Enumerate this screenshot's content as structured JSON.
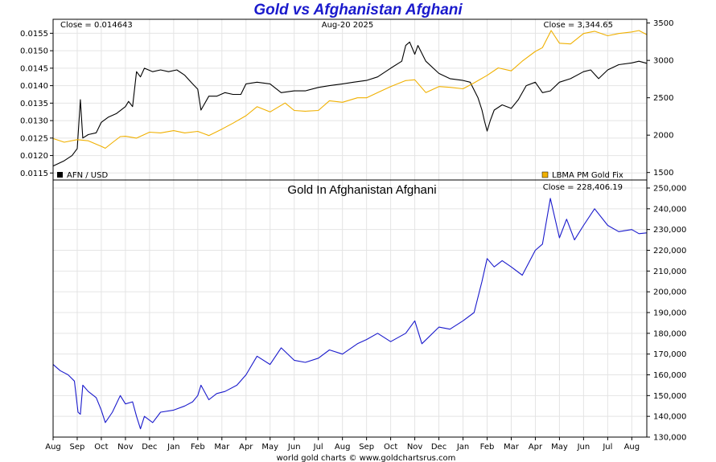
{
  "title": "Gold vs Afghanistan Afghani",
  "footer": "world gold charts © www.goldchartsrus.com",
  "chart_data": [
    {
      "type": "line",
      "title": "",
      "date_label": "Aug-20  2025",
      "left_close": "Close = 0.014643",
      "right_close": "Close = 3,344.65",
      "x_ticks": [
        "Aug",
        "Sep",
        "Oct",
        "Nov",
        "Dec",
        "Jan",
        "Feb",
        "Mar",
        "Apr",
        "May",
        "Jun",
        "Jul",
        "Aug",
        "Sep",
        "Oct",
        "Nov",
        "Dec",
        "Jan",
        "Feb",
        "Mar",
        "Apr",
        "May",
        "Jun",
        "Jul",
        "Aug"
      ],
      "x_start": "2023-08",
      "x_end": "2025-08-20",
      "left_axis": {
        "ylim": [
          0.0113,
          0.0159
        ],
        "ticks": [
          "0.0115",
          "0.0120",
          "0.0125",
          "0.0130",
          "0.0135",
          "0.0140",
          "0.0145",
          "0.0150",
          "0.0155"
        ]
      },
      "right_axis": {
        "ylim": [
          1400,
          3550
        ],
        "ticks": [
          "1500",
          "2000",
          "2500",
          "3000",
          "3500"
        ]
      },
      "legend_position": "bottom",
      "series": [
        {
          "name": "AFN / USD",
          "axis": "left",
          "color": "#000000",
          "points": [
            [
              "2023-08-01",
              0.0117
            ],
            [
              "2023-08-15",
              0.01185
            ],
            [
              "2023-08-25",
              0.012
            ],
            [
              "2023-09-01",
              0.0122
            ],
            [
              "2023-09-05",
              0.0136
            ],
            [
              "2023-09-08",
              0.0125
            ],
            [
              "2023-09-15",
              0.0126
            ],
            [
              "2023-09-25",
              0.01265
            ],
            [
              "2023-10-01",
              0.01295
            ],
            [
              "2023-10-10",
              0.0131
            ],
            [
              "2023-10-20",
              0.0132
            ],
            [
              "2023-11-01",
              0.0134
            ],
            [
              "2023-11-05",
              0.01355
            ],
            [
              "2023-11-10",
              0.0134
            ],
            [
              "2023-11-15",
              0.0144
            ],
            [
              "2023-11-20",
              0.01425
            ],
            [
              "2023-11-25",
              0.0145
            ],
            [
              "2023-12-05",
              0.0144
            ],
            [
              "2023-12-15",
              0.01445
            ],
            [
              "2023-12-25",
              0.0144
            ],
            [
              "2024-01-05",
              0.01445
            ],
            [
              "2024-01-15",
              0.0143
            ],
            [
              "2024-01-25",
              0.01405
            ],
            [
              "2024-02-01",
              0.0139
            ],
            [
              "2024-02-05",
              0.0133
            ],
            [
              "2024-02-15",
              0.0137
            ],
            [
              "2024-02-25",
              0.0137
            ],
            [
              "2024-03-05",
              0.0138
            ],
            [
              "2024-03-15",
              0.01375
            ],
            [
              "2024-03-25",
              0.01375
            ],
            [
              "2024-04-01",
              0.01405
            ],
            [
              "2024-04-15",
              0.0141
            ],
            [
              "2024-05-01",
              0.01405
            ],
            [
              "2024-05-15",
              0.0138
            ],
            [
              "2024-06-01",
              0.01385
            ],
            [
              "2024-06-15",
              0.01385
            ],
            [
              "2024-07-01",
              0.01395
            ],
            [
              "2024-07-15",
              0.014
            ],
            [
              "2024-08-01",
              0.01405
            ],
            [
              "2024-08-15",
              0.0141
            ],
            [
              "2024-09-01",
              0.01415
            ],
            [
              "2024-09-15",
              0.01425
            ],
            [
              "2024-10-01",
              0.0145
            ],
            [
              "2024-10-15",
              0.0147
            ],
            [
              "2024-10-20",
              0.01515
            ],
            [
              "2024-10-25",
              0.01525
            ],
            [
              "2024-11-01",
              0.0149
            ],
            [
              "2024-11-05",
              0.01515
            ],
            [
              "2024-11-15",
              0.0147
            ],
            [
              "2024-12-01",
              0.01435
            ],
            [
              "2024-12-15",
              0.0142
            ],
            [
              "2025-01-01",
              0.01415
            ],
            [
              "2025-01-10",
              0.0141
            ],
            [
              "2025-01-20",
              0.01365
            ],
            [
              "2025-01-25",
              0.0133
            ],
            [
              "2025-01-28",
              0.013
            ],
            [
              "2025-02-01",
              0.0127
            ],
            [
              "2025-02-05",
              0.013
            ],
            [
              "2025-02-10",
              0.0133
            ],
            [
              "2025-02-20",
              0.01345
            ],
            [
              "2025-03-01",
              0.01335
            ],
            [
              "2025-03-10",
              0.0136
            ],
            [
              "2025-03-20",
              0.014
            ],
            [
              "2025-04-01",
              0.0141
            ],
            [
              "2025-04-10",
              0.0138
            ],
            [
              "2025-04-20",
              0.01385
            ],
            [
              "2025-05-01",
              0.0141
            ],
            [
              "2025-05-15",
              0.0142
            ],
            [
              "2025-06-01",
              0.0144
            ],
            [
              "2025-06-10",
              0.01445
            ],
            [
              "2025-06-20",
              0.0142
            ],
            [
              "2025-07-01",
              0.01445
            ],
            [
              "2025-07-15",
              0.0146
            ],
            [
              "2025-08-01",
              0.01465
            ],
            [
              "2025-08-10",
              0.0147
            ],
            [
              "2025-08-20",
              0.01464
            ]
          ]
        },
        {
          "name": "LBMA PM Gold Fix",
          "axis": "right",
          "color": "#f0b000",
          "points": [
            [
              "2023-08-01",
              1955
            ],
            [
              "2023-08-15",
              1905
            ],
            [
              "2023-09-01",
              1940
            ],
            [
              "2023-09-15",
              1925
            ],
            [
              "2023-10-01",
              1850
            ],
            [
              "2023-10-06",
              1825
            ],
            [
              "2023-10-15",
              1900
            ],
            [
              "2023-10-25",
              1980
            ],
            [
              "2023-11-01",
              1985
            ],
            [
              "2023-11-15",
              1960
            ],
            [
              "2023-12-01",
              2040
            ],
            [
              "2023-12-15",
              2030
            ],
            [
              "2024-01-01",
              2060
            ],
            [
              "2024-01-15",
              2030
            ],
            [
              "2024-02-01",
              2050
            ],
            [
              "2024-02-15",
              1995
            ],
            [
              "2024-03-01",
              2080
            ],
            [
              "2024-03-15",
              2160
            ],
            [
              "2024-04-01",
              2260
            ],
            [
              "2024-04-15",
              2380
            ],
            [
              "2024-05-01",
              2310
            ],
            [
              "2024-05-20",
              2430
            ],
            [
              "2024-06-01",
              2330
            ],
            [
              "2024-06-15",
              2320
            ],
            [
              "2024-07-01",
              2330
            ],
            [
              "2024-07-15",
              2460
            ],
            [
              "2024-08-01",
              2440
            ],
            [
              "2024-08-20",
              2500
            ],
            [
              "2024-09-01",
              2500
            ],
            [
              "2024-09-15",
              2570
            ],
            [
              "2024-10-01",
              2650
            ],
            [
              "2024-10-20",
              2730
            ],
            [
              "2024-11-01",
              2740
            ],
            [
              "2024-11-15",
              2570
            ],
            [
              "2024-12-01",
              2650
            ],
            [
              "2024-12-15",
              2640
            ],
            [
              "2025-01-01",
              2620
            ],
            [
              "2025-01-15",
              2700
            ],
            [
              "2025-02-01",
              2800
            ],
            [
              "2025-02-15",
              2900
            ],
            [
              "2025-03-01",
              2860
            ],
            [
              "2025-03-15",
              2990
            ],
            [
              "2025-04-01",
              3120
            ],
            [
              "2025-04-10",
              3170
            ],
            [
              "2025-04-21",
              3400
            ],
            [
              "2025-05-01",
              3230
            ],
            [
              "2025-05-15",
              3220
            ],
            [
              "2025-06-01",
              3360
            ],
            [
              "2025-06-15",
              3390
            ],
            [
              "2025-07-01",
              3330
            ],
            [
              "2025-07-15",
              3360
            ],
            [
              "2025-08-01",
              3380
            ],
            [
              "2025-08-10",
              3400
            ],
            [
              "2025-08-20",
              3345
            ]
          ]
        }
      ]
    },
    {
      "type": "line",
      "title": "Gold In Afghanistan Afghani",
      "right_close": "Close = 228,406.19",
      "x_ticks": [
        "Aug",
        "Sep",
        "Oct",
        "Nov",
        "Dec",
        "Jan",
        "Feb",
        "Mar",
        "Apr",
        "May",
        "Jun",
        "Jul",
        "Aug",
        "Sep",
        "Oct",
        "Nov",
        "Dec",
        "Jan",
        "Feb",
        "Mar",
        "Apr",
        "May",
        "Jun",
        "Jul",
        "Aug"
      ],
      "x_start": "2023-08",
      "x_end": "2025-08-20",
      "right_axis": {
        "ylim": [
          130000,
          250000
        ],
        "ticks": [
          "130,000",
          "140,000",
          "150,000",
          "160,000",
          "170,000",
          "180,000",
          "190,000",
          "200,000",
          "210,000",
          "220,000",
          "230,000",
          "240,000",
          "250,000"
        ]
      },
      "series": [
        {
          "color": "#1a1acc",
          "points": [
            [
              "2023-08-01",
              165000
            ],
            [
              "2023-08-10",
              162000
            ],
            [
              "2023-08-20",
              160000
            ],
            [
              "2023-08-28",
              157000
            ],
            [
              "2023-09-02",
              142000
            ],
            [
              "2023-09-05",
              141000
            ],
            [
              "2023-09-08",
              155000
            ],
            [
              "2023-09-15",
              152000
            ],
            [
              "2023-09-25",
              149000
            ],
            [
              "2023-10-01",
              143000
            ],
            [
              "2023-10-06",
              137000
            ],
            [
              "2023-10-15",
              142000
            ],
            [
              "2023-10-25",
              150000
            ],
            [
              "2023-11-01",
              146000
            ],
            [
              "2023-11-10",
              147000
            ],
            [
              "2023-11-15",
              140000
            ],
            [
              "2023-11-20",
              134000
            ],
            [
              "2023-11-25",
              140000
            ],
            [
              "2023-12-05",
              137000
            ],
            [
              "2023-12-15",
              142000
            ],
            [
              "2024-01-01",
              143000
            ],
            [
              "2024-01-15",
              145000
            ],
            [
              "2024-01-25",
              147000
            ],
            [
              "2024-02-01",
              150000
            ],
            [
              "2024-02-05",
              155000
            ],
            [
              "2024-02-15",
              148000
            ],
            [
              "2024-02-25",
              151000
            ],
            [
              "2024-03-05",
              152000
            ],
            [
              "2024-03-20",
              155000
            ],
            [
              "2024-04-01",
              160000
            ],
            [
              "2024-04-15",
              169000
            ],
            [
              "2024-05-01",
              165000
            ],
            [
              "2024-05-15",
              173000
            ],
            [
              "2024-06-01",
              167000
            ],
            [
              "2024-06-15",
              166000
            ],
            [
              "2024-07-01",
              168000
            ],
            [
              "2024-07-15",
              172000
            ],
            [
              "2024-08-01",
              170000
            ],
            [
              "2024-08-20",
              175000
            ],
            [
              "2024-09-01",
              177000
            ],
            [
              "2024-09-15",
              180000
            ],
            [
              "2024-10-01",
              176000
            ],
            [
              "2024-10-20",
              180000
            ],
            [
              "2024-11-01",
              186000
            ],
            [
              "2024-11-10",
              175000
            ],
            [
              "2024-12-01",
              183000
            ],
            [
              "2024-12-15",
              182000
            ],
            [
              "2025-01-01",
              186000
            ],
            [
              "2025-01-15",
              190000
            ],
            [
              "2025-01-25",
              205000
            ],
            [
              "2025-02-01",
              216000
            ],
            [
              "2025-02-10",
              212000
            ],
            [
              "2025-02-20",
              215000
            ],
            [
              "2025-03-01",
              212000
            ],
            [
              "2025-03-15",
              208000
            ],
            [
              "2025-04-01",
              220000
            ],
            [
              "2025-04-10",
              223000
            ],
            [
              "2025-04-20",
              245000
            ],
            [
              "2025-05-01",
              226000
            ],
            [
              "2025-05-10",
              235000
            ],
            [
              "2025-05-20",
              225000
            ],
            [
              "2025-06-01",
              232000
            ],
            [
              "2025-06-15",
              240000
            ],
            [
              "2025-07-01",
              232000
            ],
            [
              "2025-07-15",
              229000
            ],
            [
              "2025-08-01",
              230000
            ],
            [
              "2025-08-10",
              228000
            ],
            [
              "2025-08-20",
              228406
            ]
          ]
        }
      ]
    }
  ]
}
